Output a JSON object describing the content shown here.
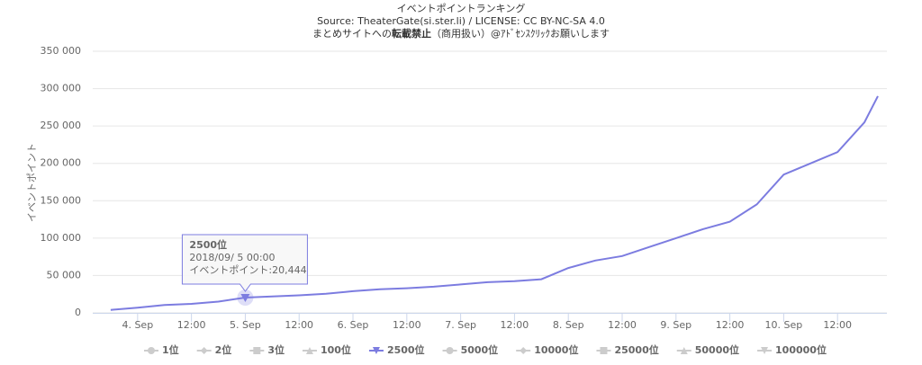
{
  "chart_data": {
    "type": "line",
    "title": "イベントポイントランキング",
    "subtitle": "Source: TheaterGate(si.ster.li) / LICENSE: CC BY-NC-SA 4.0",
    "notice": [
      "まとめサイトへの",
      "転載禁止",
      "（商用扱い）@ｱﾄﾞｾﾝｽｸﾘｯｸお願いします"
    ],
    "y_label": "イベントポイント",
    "x": [
      "2018-09-03 18:00",
      "2018-09-04 00:00",
      "2018-09-04 06:00",
      "2018-09-04 12:00",
      "2018-09-04 18:00",
      "2018-09-05 00:00",
      "2018-09-05 06:00",
      "2018-09-05 12:00",
      "2018-09-05 18:00",
      "2018-09-06 00:00",
      "2018-09-06 06:00",
      "2018-09-06 12:00",
      "2018-09-06 18:00",
      "2018-09-07 00:00",
      "2018-09-07 06:00",
      "2018-09-07 12:00",
      "2018-09-07 18:00",
      "2018-09-08 00:00",
      "2018-09-08 06:00",
      "2018-09-08 12:00",
      "2018-09-08 18:00",
      "2018-09-09 00:00",
      "2018-09-09 06:00",
      "2018-09-09 12:00",
      "2018-09-09 18:00",
      "2018-09-10 00:00",
      "2018-09-10 06:00",
      "2018-09-10 12:00",
      "2018-09-10 18:00",
      "2018-09-10 21:00"
    ],
    "series": [
      {
        "name": "2500位",
        "color": "#7c7ce0",
        "values": [
          4000,
          7000,
          10500,
          12000,
          15000,
          20444,
          22000,
          23500,
          25500,
          29000,
          31500,
          33000,
          35000,
          38000,
          41000,
          42500,
          45000,
          60000,
          70000,
          76000,
          88000,
          100000,
          112000,
          122000,
          145000,
          185000,
          200000,
          215000,
          255000,
          290000
        ]
      }
    ],
    "hidden_series": [
      "1位",
      "2位",
      "3位",
      "100位",
      "5000位",
      "10000位",
      "25000位",
      "50000位",
      "100000位"
    ],
    "xlim": [
      "2018-09-03 14:00",
      "2018-09-10 23:00"
    ],
    "xticks": [
      {
        "value": "2018-09-04 00:00",
        "label": "4. Sep"
      },
      {
        "value": "2018-09-04 12:00",
        "label": "12:00"
      },
      {
        "value": "2018-09-05 00:00",
        "label": "5. Sep"
      },
      {
        "value": "2018-09-05 12:00",
        "label": "12:00"
      },
      {
        "value": "2018-09-06 00:00",
        "label": "6. Sep"
      },
      {
        "value": "2018-09-06 12:00",
        "label": "12:00"
      },
      {
        "value": "2018-09-07 00:00",
        "label": "7. Sep"
      },
      {
        "value": "2018-09-07 12:00",
        "label": "12:00"
      },
      {
        "value": "2018-09-08 00:00",
        "label": "8. Sep"
      },
      {
        "value": "2018-09-08 12:00",
        "label": "12:00"
      },
      {
        "value": "2018-09-09 00:00",
        "label": "9. Sep"
      },
      {
        "value": "2018-09-09 12:00",
        "label": "12:00"
      },
      {
        "value": "2018-09-10 00:00",
        "label": "10. Sep"
      },
      {
        "value": "2018-09-10 12:00",
        "label": "12:00"
      }
    ],
    "ylim": [
      0,
      350000
    ],
    "yticks": [
      0,
      {
        "value": 50000,
        "label": "50 000"
      },
      {
        "value": 100000,
        "label": "100 000"
      },
      {
        "value": 150000,
        "label": "150 000"
      },
      {
        "value": 200000,
        "label": "200 000"
      },
      {
        "value": 250000,
        "label": "250 000"
      },
      {
        "value": 300000,
        "label": "300 000"
      },
      {
        "value": 350000,
        "label": "350 000"
      }
    ],
    "grid": true,
    "tooltip": {
      "point": 5,
      "series": "2500位",
      "time": "2018/09/ 5 00:00",
      "text": "イベントポイント:20,444"
    }
  }
}
